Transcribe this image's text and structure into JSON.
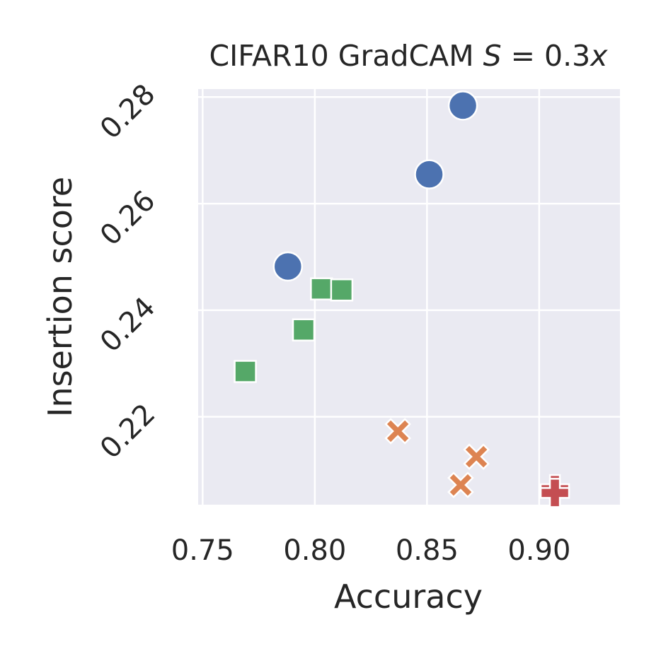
{
  "chart_data": {
    "type": "scatter",
    "title": "CIFAR10 GradCAM S = 0.3x",
    "title_parts": {
      "prefix": "CIFAR10 GradCAM ",
      "var": "S",
      "eq": " = 0.3",
      "var2": "x"
    },
    "xlabel": "Accuracy",
    "ylabel": "Insertion score",
    "xlim": [
      0.748,
      0.936
    ],
    "ylim": [
      0.2035,
      0.2815
    ],
    "xticks": [
      0.75,
      0.8,
      0.85,
      0.9
    ],
    "xtick_labels": [
      "0.75",
      "0.80",
      "0.85",
      "0.90"
    ],
    "yticks": [
      0.22,
      0.24,
      0.26,
      0.28
    ],
    "ytick_labels": [
      "0.22",
      "0.24",
      "0.26",
      "0.28"
    ],
    "grid": true,
    "background": "#eaeaf2",
    "series": [
      {
        "marker": "circle",
        "color": "#4c72b0",
        "points": [
          {
            "x": 0.866,
            "y": 0.2784
          },
          {
            "x": 0.851,
            "y": 0.2655
          },
          {
            "x": 0.788,
            "y": 0.2482
          }
        ]
      },
      {
        "marker": "x",
        "color": "#dd8452",
        "points": [
          {
            "x": 0.837,
            "y": 0.2173
          },
          {
            "x": 0.872,
            "y": 0.2125
          },
          {
            "x": 0.865,
            "y": 0.2072
          }
        ]
      },
      {
        "marker": "square",
        "color": "#55a868",
        "points": [
          {
            "x": 0.803,
            "y": 0.244
          },
          {
            "x": 0.812,
            "y": 0.2438
          },
          {
            "x": 0.795,
            "y": 0.2363
          },
          {
            "x": 0.769,
            "y": 0.2285
          }
        ]
      },
      {
        "marker": "plus",
        "color": "#c44e52",
        "points": [
          {
            "x": 0.907,
            "y": 0.2064
          },
          {
            "x": 0.907,
            "y": 0.2057
          }
        ]
      }
    ]
  }
}
